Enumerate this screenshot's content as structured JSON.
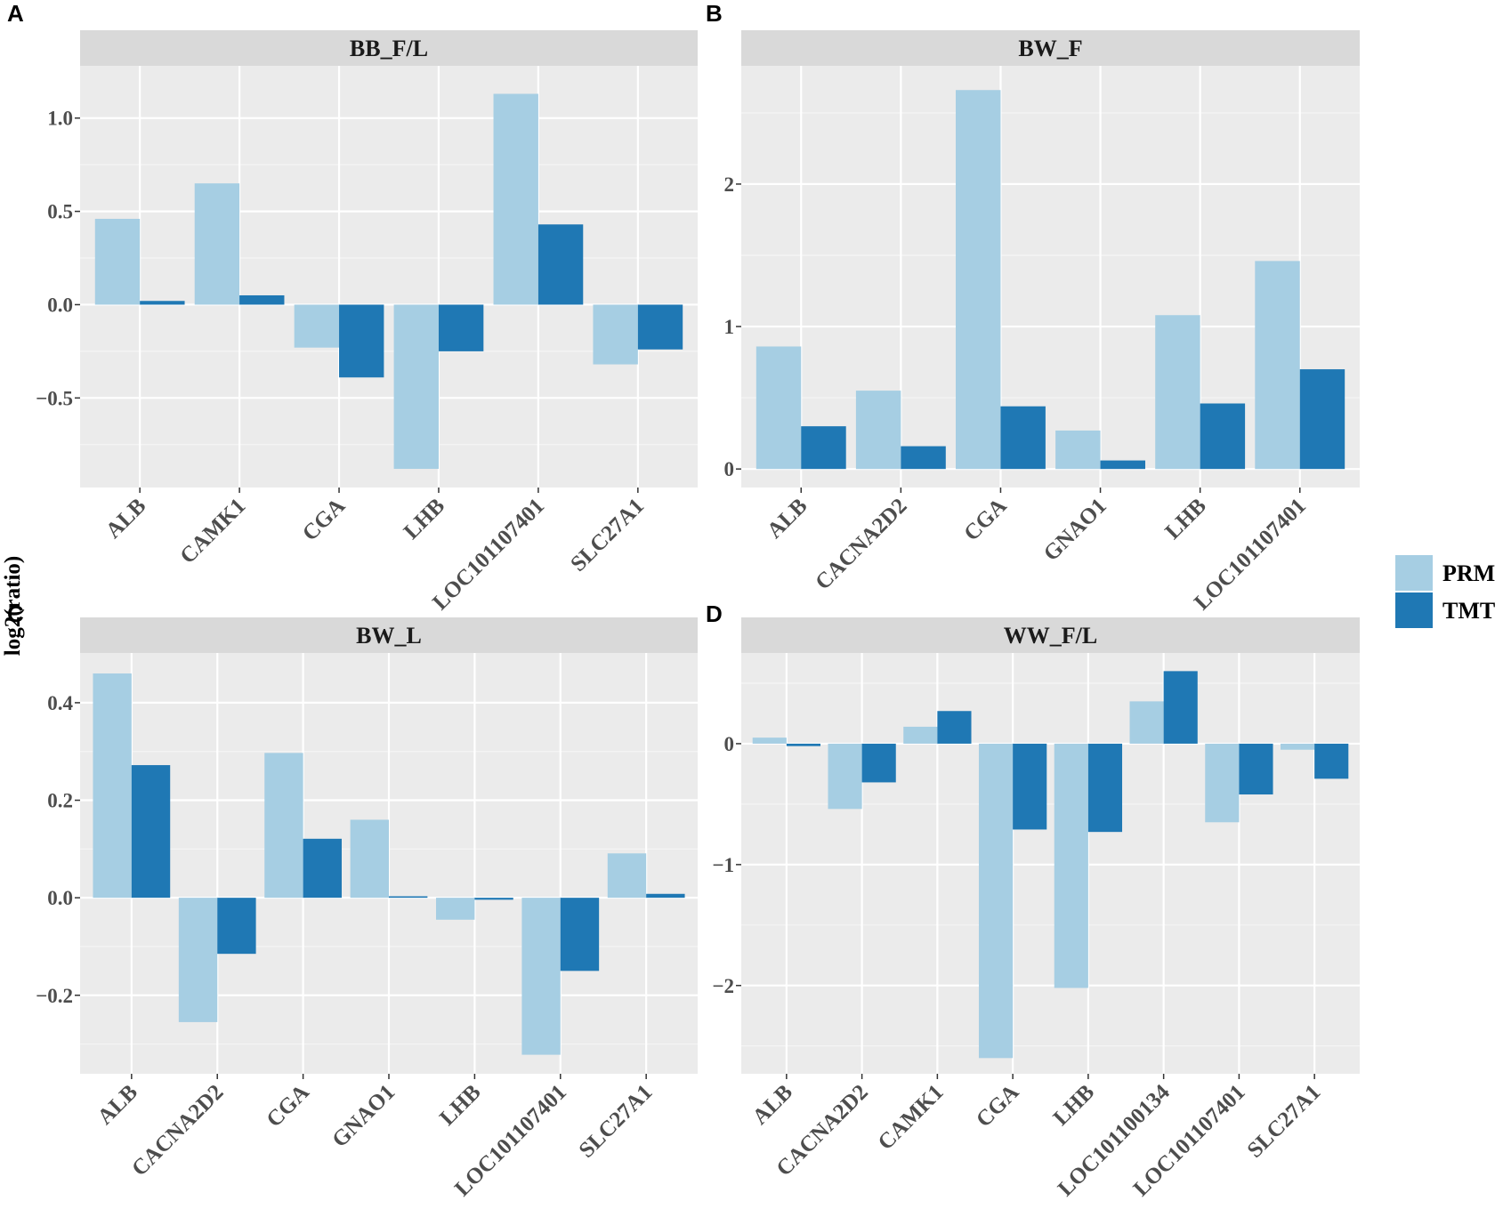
{
  "figure": {
    "ylabel": "log2(ratio)",
    "legend": [
      {
        "name": "PRM",
        "color": "#a6cee3"
      },
      {
        "name": "TMT",
        "color": "#1f78b4"
      }
    ]
  },
  "chart_data": [
    {
      "type": "bar",
      "panel_letter": "A",
      "title": "BB_F/L",
      "categories": [
        "ALB",
        "CAMK1",
        "CGA",
        "LHB",
        "LOC101107401",
        "SLC27A1"
      ],
      "series": [
        {
          "name": "PRM",
          "values": [
            0.46,
            0.65,
            -0.23,
            -0.88,
            1.13,
            -0.32
          ]
        },
        {
          "name": "TMT",
          "values": [
            0.02,
            0.05,
            -0.39,
            -0.25,
            0.43,
            -0.24
          ]
        }
      ],
      "ylim": [
        -0.98,
        1.28
      ],
      "yticks": [
        {
          "value": -0.5,
          "label": "−0.5"
        },
        {
          "value": 0.0,
          "label": "0.0"
        },
        {
          "value": 0.5,
          "label": "0.5"
        },
        {
          "value": 1.0,
          "label": "1.0"
        }
      ],
      "minor_yticks": [
        -0.75,
        -0.25,
        0.25,
        0.75
      ],
      "xlabel": "",
      "ylabel": "log2(ratio)"
    },
    {
      "type": "bar",
      "panel_letter": "B",
      "title": "BW_F",
      "categories": [
        "ALB",
        "CACNA2D2",
        "CGA",
        "GNAO1",
        "LHB",
        "LOC101107401"
      ],
      "series": [
        {
          "name": "PRM",
          "values": [
            0.86,
            0.55,
            2.66,
            0.27,
            1.08,
            1.46
          ]
        },
        {
          "name": "TMT",
          "values": [
            0.3,
            0.16,
            0.44,
            0.06,
            0.46,
            0.7
          ]
        }
      ],
      "ylim": [
        -0.13,
        2.83
      ],
      "yticks": [
        {
          "value": 0,
          "label": "0"
        },
        {
          "value": 1,
          "label": "1"
        },
        {
          "value": 2,
          "label": "2"
        }
      ],
      "minor_yticks": [
        0.5,
        1.5,
        2.5
      ],
      "xlabel": "",
      "ylabel": "log2(ratio)"
    },
    {
      "type": "bar",
      "panel_letter": "C",
      "title": "BW_L",
      "categories": [
        "ALB",
        "CACNA2D2",
        "CGA",
        "GNAO1",
        "LHB",
        "LOC101107401",
        "SLC27A1"
      ],
      "series": [
        {
          "name": "PRM",
          "values": [
            0.46,
            -0.255,
            0.297,
            0.16,
            -0.045,
            -0.322,
            0.091
          ]
        },
        {
          "name": "TMT",
          "values": [
            0.272,
            -0.115,
            0.121,
            0.003,
            -0.004,
            -0.15,
            0.008
          ]
        }
      ],
      "ylim": [
        -0.361,
        0.502
      ],
      "yticks": [
        {
          "value": -0.2,
          "label": "−0.2"
        },
        {
          "value": 0.0,
          "label": "0.0"
        },
        {
          "value": 0.2,
          "label": "0.2"
        },
        {
          "value": 0.4,
          "label": "0.4"
        }
      ],
      "minor_yticks": [
        -0.3,
        -0.1,
        0.1,
        0.3
      ],
      "xlabel": "",
      "ylabel": "log2(ratio)"
    },
    {
      "type": "bar",
      "panel_letter": "D",
      "title": "WW_F/L",
      "categories": [
        "ALB",
        "CACNA2D2",
        "CAMK1",
        "CGA",
        "LHB",
        "LOC101100134",
        "LOC101107401",
        "SLC27A1"
      ],
      "series": [
        {
          "name": "PRM",
          "values": [
            0.05,
            -0.54,
            0.14,
            -2.6,
            -2.02,
            0.35,
            -0.65,
            -0.05
          ]
        },
        {
          "name": "TMT",
          "values": [
            -0.02,
            -0.32,
            0.27,
            -0.71,
            -0.73,
            0.6,
            -0.42,
            -0.29
          ]
        }
      ],
      "ylim": [
        -2.73,
        0.75
      ],
      "yticks": [
        {
          "value": -2,
          "label": "−2"
        },
        {
          "value": -1,
          "label": "−1"
        },
        {
          "value": 0,
          "label": "0"
        }
      ],
      "minor_yticks": [
        -2.5,
        -1.5,
        -0.5,
        0.5
      ],
      "xlabel": "",
      "ylabel": "log2(ratio)"
    }
  ]
}
